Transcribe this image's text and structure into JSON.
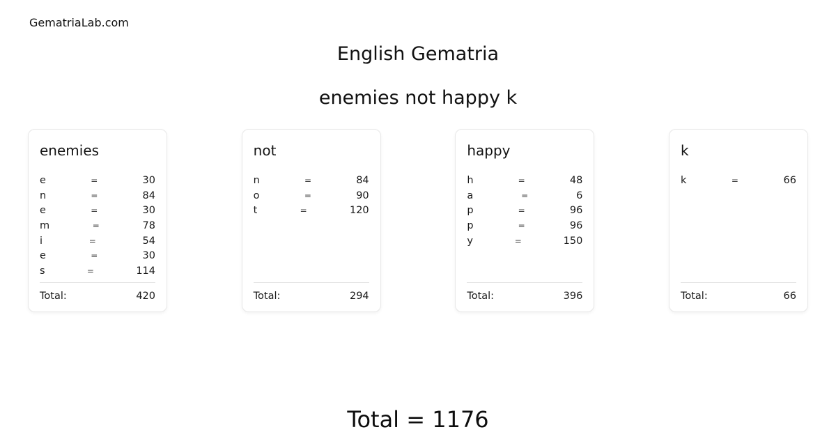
{
  "brand": "GematriaLab.com",
  "header": {
    "title": "English Gematria",
    "phrase": "enemies not happy k"
  },
  "equals_sign": "=",
  "labels": {
    "card_total": "Total:"
  },
  "cards": [
    {
      "word": "enemies",
      "letters": [
        {
          "ch": "e",
          "val": "30"
        },
        {
          "ch": "n",
          "val": "84"
        },
        {
          "ch": "e",
          "val": "30"
        },
        {
          "ch": "m",
          "val": "78"
        },
        {
          "ch": "i",
          "val": "54"
        },
        {
          "ch": "e",
          "val": "30"
        },
        {
          "ch": "s",
          "val": "114"
        }
      ],
      "total": "420"
    },
    {
      "word": "not",
      "letters": [
        {
          "ch": "n",
          "val": "84"
        },
        {
          "ch": "o",
          "val": "90"
        },
        {
          "ch": "t",
          "val": "120"
        }
      ],
      "total": "294"
    },
    {
      "word": "happy",
      "letters": [
        {
          "ch": "h",
          "val": "48"
        },
        {
          "ch": "a",
          "val": "6"
        },
        {
          "ch": "p",
          "val": "96"
        },
        {
          "ch": "p",
          "val": "96"
        },
        {
          "ch": "y",
          "val": "150"
        }
      ],
      "total": "396"
    },
    {
      "word": "k",
      "letters": [
        {
          "ch": "k",
          "val": "66"
        }
      ],
      "total": "66"
    }
  ],
  "footer": {
    "label": "Total",
    "equals": "=",
    "value": "1176"
  },
  "colors": {
    "background": "#ffffff",
    "text": "#1a1a1a",
    "equals": "#414141",
    "card_border": "#e8e8e8",
    "divider": "#e4e4e4"
  }
}
